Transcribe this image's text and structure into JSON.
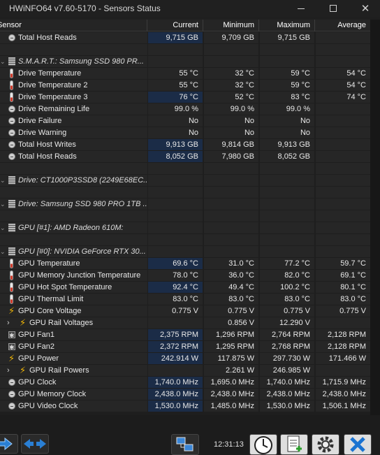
{
  "window": {
    "title": "HWiNFO64 v7.60-5170 - Sensors Status"
  },
  "header": {
    "sensor": "Sensor",
    "current": "Current",
    "minimum": "Minimum",
    "maximum": "Maximum",
    "average": "Average"
  },
  "rows": [
    {
      "type": "sensor",
      "icon": "circle-icon",
      "label": "Total Host Reads",
      "cur": "9,715 GB",
      "min": "9,709 GB",
      "max": "9,715 GB",
      "avg": "",
      "hl": true
    },
    {
      "type": "blank"
    },
    {
      "type": "group",
      "icon": "chip-icon",
      "label": "S.M.A.R.T.: Samsung SSD 980 PR..."
    },
    {
      "type": "sensor",
      "icon": "thermometer-icon",
      "label": "Drive Temperature",
      "cur": "55 °C",
      "min": "32 °C",
      "max": "59 °C",
      "avg": "54 °C"
    },
    {
      "type": "sensor",
      "icon": "thermometer-icon",
      "label": "Drive Temperature 2",
      "cur": "55 °C",
      "min": "32 °C",
      "max": "59 °C",
      "avg": "54 °C"
    },
    {
      "type": "sensor",
      "icon": "thermometer-icon",
      "label": "Drive Temperature 3",
      "cur": "76 °C",
      "min": "52 °C",
      "max": "83 °C",
      "avg": "74 °C",
      "hl": true
    },
    {
      "type": "sensor",
      "icon": "circle-icon",
      "label": "Drive Remaining Life",
      "cur": "99.0 %",
      "min": "99.0 %",
      "max": "99.0 %",
      "avg": ""
    },
    {
      "type": "sensor",
      "icon": "circle-icon",
      "label": "Drive Failure",
      "cur": "No",
      "min": "No",
      "max": "No",
      "avg": ""
    },
    {
      "type": "sensor",
      "icon": "circle-icon",
      "label": "Drive Warning",
      "cur": "No",
      "min": "No",
      "max": "No",
      "avg": ""
    },
    {
      "type": "sensor",
      "icon": "circle-icon",
      "label": "Total Host Writes",
      "cur": "9,913 GB",
      "min": "9,814 GB",
      "max": "9,913 GB",
      "avg": "",
      "hl": true
    },
    {
      "type": "sensor",
      "icon": "circle-icon",
      "label": "Total Host Reads",
      "cur": "8,052 GB",
      "min": "7,980 GB",
      "max": "8,052 GB",
      "avg": "",
      "hl": true
    },
    {
      "type": "blank"
    },
    {
      "type": "group",
      "icon": "chip-icon",
      "label": "Drive: CT1000P3SSD8 (2249E68EC..."
    },
    {
      "type": "blank"
    },
    {
      "type": "group",
      "icon": "chip-icon",
      "label": "Drive: Samsung SSD 980 PRO 1TB ..."
    },
    {
      "type": "blank"
    },
    {
      "type": "group",
      "icon": "chip-icon",
      "label": "GPU [#1]: AMD Radeon 610M:"
    },
    {
      "type": "blank"
    },
    {
      "type": "group",
      "icon": "chip-icon",
      "label": "GPU [#0]: NVIDIA GeForce RTX 30..."
    },
    {
      "type": "sensor",
      "icon": "thermometer-icon",
      "label": "GPU Temperature",
      "cur": "69.6 °C",
      "min": "31.0 °C",
      "max": "77.2 °C",
      "avg": "59.7 °C",
      "hl": true
    },
    {
      "type": "sensor",
      "icon": "thermometer-icon",
      "label": "GPU Memory Junction Temperature",
      "cur": "78.0 °C",
      "min": "36.0 °C",
      "max": "82.0 °C",
      "avg": "69.1 °C"
    },
    {
      "type": "sensor",
      "icon": "thermometer-icon",
      "label": "GPU Hot Spot Temperature",
      "cur": "92.4 °C",
      "min": "49.4 °C",
      "max": "100.2 °C",
      "avg": "80.1 °C",
      "hl": true
    },
    {
      "type": "sensor",
      "icon": "thermometer-icon",
      "label": "GPU Thermal Limit",
      "cur": "83.0 °C",
      "min": "83.0 °C",
      "max": "83.0 °C",
      "avg": "83.0 °C"
    },
    {
      "type": "sensor",
      "icon": "bolt-icon",
      "label": "GPU Core Voltage",
      "cur": "0.775 V",
      "min": "0.775 V",
      "max": "0.775 V",
      "avg": "0.775 V"
    },
    {
      "type": "subgroup",
      "icon": "bolt-icon",
      "label": "GPU Rail Voltages",
      "cur": "",
      "min": "0.856 V",
      "max": "12.290 V",
      "avg": ""
    },
    {
      "type": "sensor",
      "icon": "fan-icon",
      "label": "GPU Fan1",
      "cur": "2,375 RPM",
      "min": "1,296 RPM",
      "max": "2,764 RPM",
      "avg": "2,128 RPM",
      "hl": true
    },
    {
      "type": "sensor",
      "icon": "fan-icon",
      "label": "GPU Fan2",
      "cur": "2,372 RPM",
      "min": "1,295 RPM",
      "max": "2,768 RPM",
      "avg": "2,128 RPM",
      "hl": true
    },
    {
      "type": "sensor",
      "icon": "bolt-icon",
      "label": "GPU Power",
      "cur": "242.914 W",
      "min": "117.875 W",
      "max": "297.730 W",
      "avg": "171.466 W",
      "hl": true
    },
    {
      "type": "subgroup",
      "icon": "bolt-icon",
      "label": "GPU Rail Powers",
      "cur": "",
      "min": "2.261 W",
      "max": "246.985 W",
      "avg": ""
    },
    {
      "type": "sensor",
      "icon": "circle-icon",
      "label": "GPU Clock",
      "cur": "1,740.0 MHz",
      "min": "1,695.0 MHz",
      "max": "1,740.0 MHz",
      "avg": "1,715.9 MHz",
      "hl": true
    },
    {
      "type": "sensor",
      "icon": "circle-icon",
      "label": "GPU Memory Clock",
      "cur": "2,438.0 MHz",
      "min": "2,438.0 MHz",
      "max": "2,438.0 MHz",
      "avg": "2,438.0 MHz",
      "hl": true
    },
    {
      "type": "sensor",
      "icon": "circle-icon",
      "label": "GPU Video Clock",
      "cur": "1,530.0 MHz",
      "min": "1,485.0 MHz",
      "max": "1,530.0 MHz",
      "avg": "1,506.1 MHz",
      "hl": true
    }
  ],
  "toolbar": {
    "time": "12:31:13",
    "buttons": [
      "navigate-right-icon",
      "collapse-icon",
      "network-icon",
      "clock-icon",
      "report-icon",
      "settings-gear-icon",
      "close-icon"
    ]
  },
  "colors": {
    "background": "#1e1e1e",
    "highlight": "#1b2c47",
    "accent": "#2a7fd4"
  }
}
